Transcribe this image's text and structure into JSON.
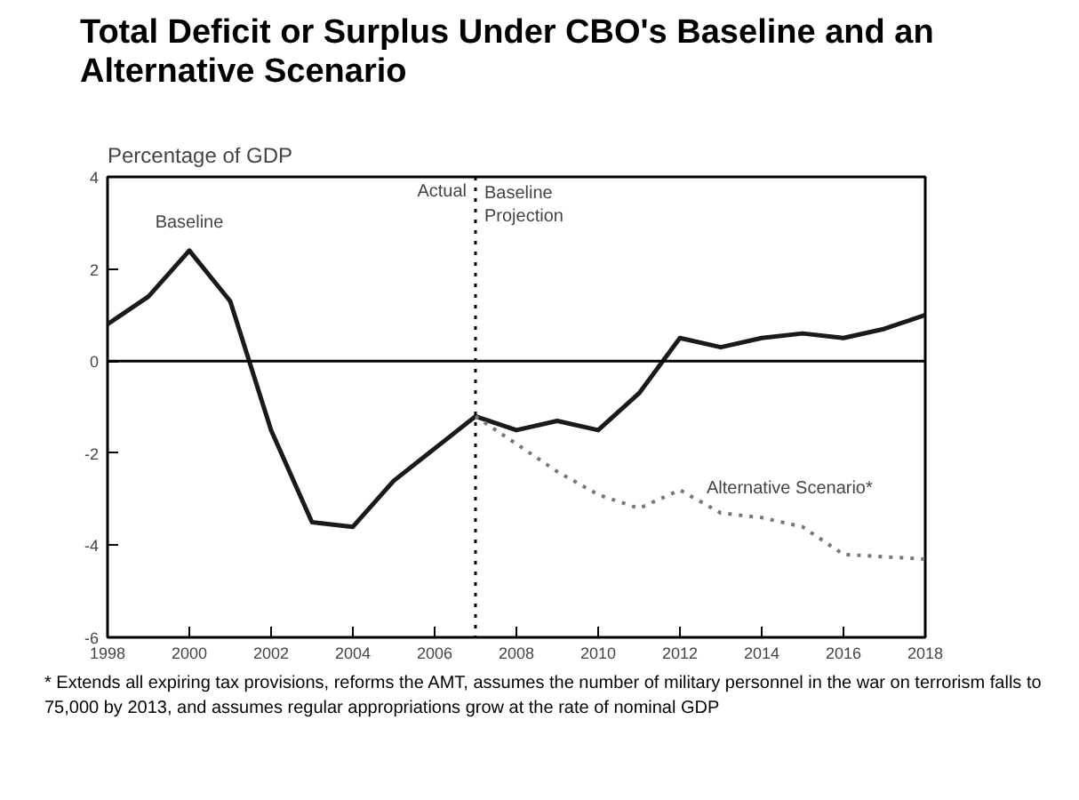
{
  "chart_data": {
    "type": "line",
    "title": "Total Deficit or Surplus Under CBO's Baseline and an Alternative Scenario",
    "ylabel": "Percentage of GDP",
    "x": [
      1998,
      1999,
      2000,
      2001,
      2002,
      2003,
      2004,
      2005,
      2006,
      2007,
      2008,
      2009,
      2010,
      2011,
      2012,
      2013,
      2014,
      2015,
      2016,
      2017,
      2018
    ],
    "series": [
      {
        "name": "Baseline",
        "color": "#1a1a1a",
        "line_style": "solid",
        "values": [
          0.8,
          1.4,
          2.4,
          1.3,
          -1.5,
          -3.5,
          -3.6,
          -2.6,
          -1.9,
          -1.2,
          -1.5,
          -1.3,
          -1.5,
          -0.7,
          0.5,
          0.3,
          0.5,
          0.6,
          0.5,
          0.7,
          1.0
        ]
      },
      {
        "name": "Alternative Scenario*",
        "color": "#777777",
        "line_style": "dotted",
        "x": [
          2007,
          2008,
          2009,
          2010,
          2011,
          2012,
          2013,
          2014,
          2015,
          2016,
          2017,
          2018
        ],
        "values": [
          -1.2,
          -1.8,
          -2.4,
          -2.9,
          -3.2,
          -2.8,
          -3.3,
          -3.4,
          -3.6,
          -4.2,
          -4.25,
          -4.3
        ]
      }
    ],
    "xlim": [
      1998,
      2018
    ],
    "xticks": [
      1998,
      2000,
      2002,
      2004,
      2006,
      2008,
      2010,
      2012,
      2014,
      2016,
      2018
    ],
    "ylim": [
      -6,
      4
    ],
    "yticks": [
      -6,
      -4,
      -2,
      0,
      2,
      4
    ],
    "ref_lines": [
      {
        "axis": "x",
        "value": 2007,
        "label": "Actual",
        "line_style": "dotted",
        "color": "#000000"
      },
      {
        "axis": "y",
        "value": 0,
        "label": null,
        "line_style": "solid",
        "color": "#000000"
      }
    ],
    "annotations": [
      {
        "text": "Baseline Projection",
        "x": 2007,
        "y": 4
      },
      "* Extends all expiring tax provisions, reforms the AMT, assumes the number of military personnel in the war on terrorism falls to 75,000 by 2013, and assumes regular appropriations grow at the rate of nominal GDP"
    ],
    "grid": false,
    "marker": "none"
  }
}
